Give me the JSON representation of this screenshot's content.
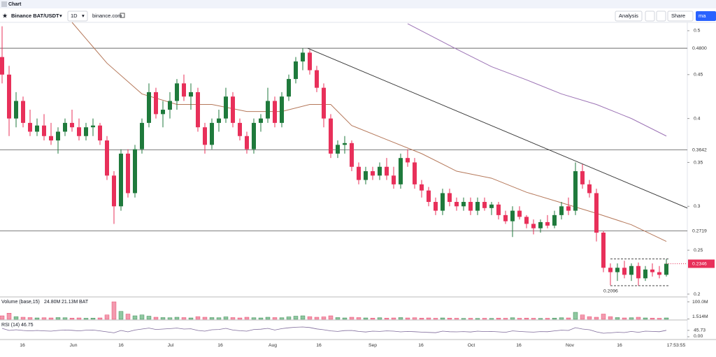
{
  "tab": "Chart",
  "toolbar": {
    "symbol": "Binance BAT/USDT",
    "interval": "1D",
    "source": "binance.com",
    "analysis": "Analysis",
    "share": "Share",
    "more": "ma"
  },
  "chart_data": {
    "type": "candlestick",
    "up_color": "#1f7a3c",
    "down_color": "#e8305a",
    "ohlc": [
      [
        0.47,
        0.505,
        0.44,
        0.45
      ],
      [
        0.45,
        0.46,
        0.38,
        0.4
      ],
      [
        0.4,
        0.43,
        0.39,
        0.42
      ],
      [
        0.42,
        0.425,
        0.39,
        0.395
      ],
      [
        0.395,
        0.41,
        0.38,
        0.385
      ],
      [
        0.385,
        0.4,
        0.38,
        0.392
      ],
      [
        0.392,
        0.405,
        0.375,
        0.38
      ],
      [
        0.38,
        0.395,
        0.37,
        0.375
      ],
      [
        0.375,
        0.39,
        0.36,
        0.385
      ],
      [
        0.385,
        0.4,
        0.38,
        0.395
      ],
      [
        0.395,
        0.41,
        0.385,
        0.39
      ],
      [
        0.39,
        0.4,
        0.375,
        0.38
      ],
      [
        0.38,
        0.395,
        0.375,
        0.39
      ],
      [
        0.39,
        0.4,
        0.38,
        0.392
      ],
      [
        0.392,
        0.395,
        0.37,
        0.375
      ],
      [
        0.375,
        0.38,
        0.33,
        0.335
      ],
      [
        0.335,
        0.34,
        0.28,
        0.3
      ],
      [
        0.3,
        0.365,
        0.295,
        0.36
      ],
      [
        0.36,
        0.365,
        0.31,
        0.315
      ],
      [
        0.315,
        0.37,
        0.31,
        0.365
      ],
      [
        0.365,
        0.4,
        0.36,
        0.395
      ],
      [
        0.395,
        0.44,
        0.39,
        0.43
      ],
      [
        0.43,
        0.435,
        0.4,
        0.405
      ],
      [
        0.405,
        0.42,
        0.39,
        0.41
      ],
      [
        0.41,
        0.43,
        0.4,
        0.42
      ],
      [
        0.42,
        0.445,
        0.41,
        0.44
      ],
      [
        0.44,
        0.45,
        0.42,
        0.425
      ],
      [
        0.425,
        0.44,
        0.41,
        0.43
      ],
      [
        0.43,
        0.435,
        0.385,
        0.39
      ],
      [
        0.39,
        0.395,
        0.36,
        0.37
      ],
      [
        0.37,
        0.4,
        0.365,
        0.395
      ],
      [
        0.395,
        0.41,
        0.385,
        0.4
      ],
      [
        0.4,
        0.435,
        0.395,
        0.425
      ],
      [
        0.425,
        0.43,
        0.39,
        0.395
      ],
      [
        0.395,
        0.4,
        0.375,
        0.38
      ],
      [
        0.38,
        0.385,
        0.36,
        0.365
      ],
      [
        0.365,
        0.4,
        0.36,
        0.395
      ],
      [
        0.395,
        0.405,
        0.385,
        0.4
      ],
      [
        0.4,
        0.435,
        0.395,
        0.42
      ],
      [
        0.42,
        0.425,
        0.39,
        0.395
      ],
      [
        0.395,
        0.43,
        0.39,
        0.425
      ],
      [
        0.425,
        0.45,
        0.42,
        0.445
      ],
      [
        0.445,
        0.47,
        0.44,
        0.465
      ],
      [
        0.465,
        0.48,
        0.455,
        0.475
      ],
      [
        0.475,
        0.478,
        0.45,
        0.455
      ],
      [
        0.455,
        0.46,
        0.43,
        0.435
      ],
      [
        0.435,
        0.44,
        0.39,
        0.4
      ],
      [
        0.4,
        0.405,
        0.355,
        0.36
      ],
      [
        0.36,
        0.375,
        0.355,
        0.37
      ],
      [
        0.37,
        0.38,
        0.36,
        0.372
      ],
      [
        0.372,
        0.375,
        0.34,
        0.345
      ],
      [
        0.345,
        0.35,
        0.325,
        0.33
      ],
      [
        0.33,
        0.345,
        0.325,
        0.34
      ],
      [
        0.34,
        0.345,
        0.33,
        0.335
      ],
      [
        0.335,
        0.35,
        0.33,
        0.345
      ],
      [
        0.345,
        0.355,
        0.33,
        0.335
      ],
      [
        0.335,
        0.345,
        0.32,
        0.325
      ],
      [
        0.325,
        0.36,
        0.32,
        0.355
      ],
      [
        0.355,
        0.365,
        0.345,
        0.35
      ],
      [
        0.35,
        0.355,
        0.32,
        0.325
      ],
      [
        0.325,
        0.33,
        0.31,
        0.318
      ],
      [
        0.318,
        0.322,
        0.3,
        0.305
      ],
      [
        0.305,
        0.31,
        0.29,
        0.295
      ],
      [
        0.295,
        0.32,
        0.29,
        0.315
      ],
      [
        0.315,
        0.32,
        0.3,
        0.305
      ],
      [
        0.305,
        0.31,
        0.295,
        0.3
      ],
      [
        0.3,
        0.31,
        0.295,
        0.305
      ],
      [
        0.305,
        0.31,
        0.29,
        0.295
      ],
      [
        0.295,
        0.31,
        0.29,
        0.305
      ],
      [
        0.305,
        0.31,
        0.295,
        0.298
      ],
      [
        0.298,
        0.305,
        0.29,
        0.302
      ],
      [
        0.302,
        0.305,
        0.285,
        0.29
      ],
      [
        0.29,
        0.295,
        0.28,
        0.283
      ],
      [
        0.283,
        0.3,
        0.265,
        0.295
      ],
      [
        0.295,
        0.3,
        0.285,
        0.288
      ],
      [
        0.288,
        0.29,
        0.275,
        0.28
      ],
      [
        0.28,
        0.285,
        0.268,
        0.275
      ],
      [
        0.275,
        0.285,
        0.27,
        0.282
      ],
      [
        0.282,
        0.29,
        0.275,
        0.278
      ],
      [
        0.278,
        0.295,
        0.275,
        0.29
      ],
      [
        0.29,
        0.305,
        0.285,
        0.3
      ],
      [
        0.3,
        0.31,
        0.29,
        0.295
      ],
      [
        0.295,
        0.35,
        0.29,
        0.34
      ],
      [
        0.34,
        0.348,
        0.32,
        0.325
      ],
      [
        0.325,
        0.33,
        0.31,
        0.315
      ],
      [
        0.315,
        0.32,
        0.26,
        0.27
      ],
      [
        0.27,
        0.272,
        0.225,
        0.23
      ],
      [
        0.23,
        0.235,
        0.21,
        0.225
      ],
      [
        0.225,
        0.235,
        0.215,
        0.23
      ],
      [
        0.23,
        0.238,
        0.218,
        0.222
      ],
      [
        0.222,
        0.235,
        0.215,
        0.232
      ],
      [
        0.232,
        0.236,
        0.2096,
        0.218
      ],
      [
        0.218,
        0.232,
        0.215,
        0.228
      ],
      [
        0.228,
        0.235,
        0.22,
        0.225
      ],
      [
        0.225,
        0.232,
        0.218,
        0.222
      ],
      [
        0.222,
        0.24,
        0.22,
        0.2346
      ]
    ],
    "ylim": [
      0.1976,
      0.5095
    ],
    "yticks": [
      0.5,
      0.45,
      0.4,
      0.35,
      0.3,
      0.25,
      0.2
    ],
    "grid": false,
    "levels": [
      {
        "value": 0.48,
        "label": "0.4800"
      },
      {
        "value": 0.3642,
        "label": "0.3642"
      },
      {
        "value": 0.2719,
        "label": "0.2719"
      }
    ],
    "last_price": {
      "value": 0.2346,
      "label": "0.2346"
    },
    "low_label": {
      "value": 0.2096,
      "label": "0.2096"
    },
    "trendline": {
      "color": "#333333",
      "x": [
        43.7,
        98
      ],
      "values": [
        0.48,
        0.298
      ]
    },
    "range_box": {
      "x": [
        87,
        95.5
      ],
      "values": [
        0.2096,
        0.24
      ]
    },
    "ma_lines": [
      {
        "color": "#b5785a",
        "x": [
          10,
          15,
          20,
          25,
          30,
          35,
          40,
          44,
          47,
          50,
          55,
          60,
          65,
          70,
          75,
          80,
          85,
          90,
          95
        ],
        "values": [
          0.5095,
          0.463,
          0.428,
          0.416,
          0.416,
          0.408,
          0.408,
          0.416,
          0.416,
          0.392,
          0.376,
          0.36,
          0.34,
          0.332,
          0.316,
          0.304,
          0.292,
          0.279,
          0.26
        ]
      },
      {
        "color": "#9c73b5",
        "x": [
          58,
          65,
          70,
          75,
          80,
          85,
          90,
          95
        ],
        "values": [
          0.508,
          0.479,
          0.459,
          0.444,
          0.428,
          0.416,
          0.4,
          0.38
        ]
      }
    ],
    "xlabels": [
      "16",
      "Jun",
      "16",
      "Jul",
      "16",
      "Aug",
      "16",
      "Sep",
      "16",
      "Oct",
      "16",
      "Nov",
      "16",
      "17:53:55"
    ],
    "volume": {
      "title": "Volume (base,15)",
      "readouts": [
        "24.80M",
        "21.13M",
        "BAT"
      ],
      "ylim": [
        0,
        120
      ],
      "yticks": [
        {
          "value": 100,
          "label": "100.0M"
        },
        {
          "value": 1.514,
          "label": "1.514M"
        }
      ],
      "values": [
        20,
        35,
        15,
        12,
        10,
        8,
        9,
        8,
        10,
        9,
        7,
        8,
        6,
        7,
        8,
        25,
        100,
        45,
        30,
        20,
        25,
        18,
        12,
        10,
        9,
        12,
        10,
        8,
        15,
        12,
        10,
        9,
        14,
        10,
        8,
        12,
        9,
        8,
        12,
        10,
        9,
        14,
        18,
        20,
        15,
        12,
        14,
        20,
        10,
        8,
        12,
        10,
        8,
        7,
        9,
        7,
        8,
        10,
        8,
        9,
        7,
        8,
        6,
        8,
        7,
        6,
        5,
        6,
        5,
        6,
        5,
        7,
        6,
        9,
        6,
        7,
        6,
        5,
        6,
        7,
        9,
        8,
        40,
        25,
        15,
        12,
        30,
        15,
        10,
        8,
        9,
        12,
        8,
        7,
        6,
        8
      ]
    },
    "rsi": {
      "title": "RSI (14)",
      "readout": 46.75,
      "color": "#7e6a9a",
      "ylim": [
        0,
        100
      ],
      "yticks": [
        45.73,
        {
          "value": 0,
          "label": "0.00"
        }
      ],
      "values": [
        60,
        45,
        50,
        45,
        42,
        45,
        42,
        40,
        45,
        48,
        46,
        42,
        47,
        48,
        42,
        35,
        28,
        45,
        35,
        48,
        55,
        62,
        52,
        55,
        58,
        62,
        55,
        57,
        45,
        40,
        50,
        52,
        60,
        48,
        43,
        40,
        52,
        54,
        60,
        48,
        58,
        64,
        68,
        70,
        66,
        56,
        50,
        42,
        38,
        44,
        45,
        38,
        34,
        40,
        38,
        42,
        40,
        35,
        38,
        36,
        33,
        31,
        29,
        40,
        36,
        35,
        37,
        34,
        40,
        37,
        38,
        35,
        32,
        42,
        38,
        35,
        33,
        37,
        36,
        42,
        47,
        45,
        65,
        55,
        50,
        35,
        25,
        28,
        32,
        30,
        38,
        32,
        40,
        38,
        36,
        46
      ]
    }
  }
}
